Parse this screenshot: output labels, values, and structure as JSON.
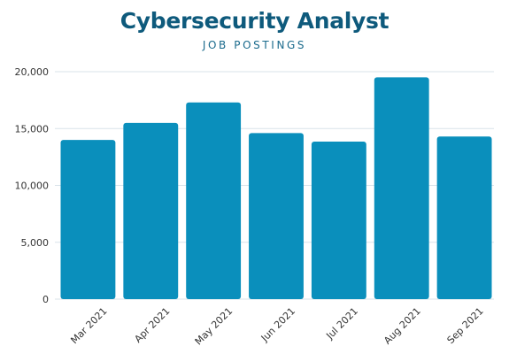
{
  "chart_data": {
    "type": "bar",
    "title": "Cybersecurity Analyst",
    "subtitle": "JOB POSTINGS",
    "categories": [
      "Mar 2021",
      "Apr 2021",
      "May 2021",
      "Jun 2021",
      "Jul 2021",
      "Aug 2021",
      "Sep 2021"
    ],
    "values": [
      14000,
      15500,
      17300,
      14600,
      13850,
      19500,
      14300
    ],
    "y_ticks": [
      "0",
      "5,000",
      "10,000",
      "15,000",
      "20,000"
    ],
    "ylim": [
      0,
      20000
    ],
    "grid": true,
    "bar_color": "#0a8fbc",
    "title_color": "#0e5a7c",
    "gridline_color": "#d9e3ea"
  }
}
